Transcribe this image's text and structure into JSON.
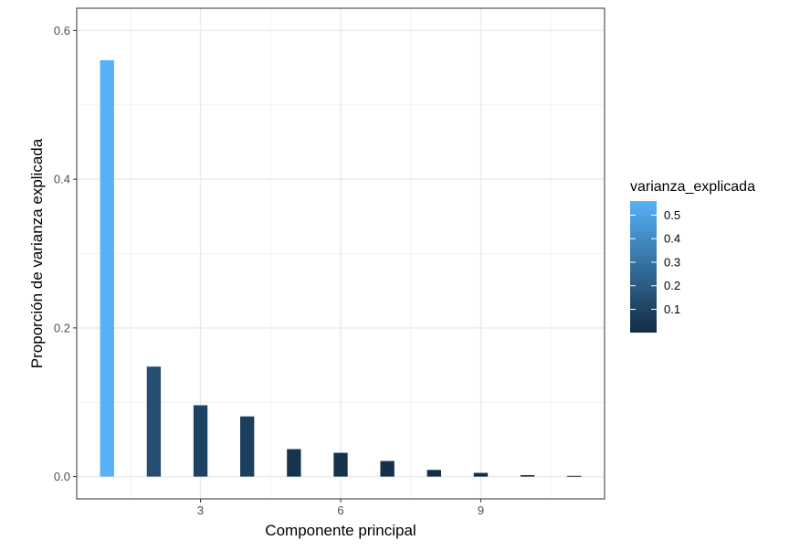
{
  "chart_data": {
    "type": "bar",
    "title": "",
    "xlabel": "Componente principal",
    "ylabel": "Proporción de varianza explicada",
    "x": [
      1,
      2,
      3,
      4,
      5,
      6,
      7,
      8,
      9,
      10,
      11
    ],
    "values": [
      0.56,
      0.148,
      0.096,
      0.081,
      0.037,
      0.032,
      0.021,
      0.009,
      0.005,
      0.002,
      0.001
    ],
    "xlim": [
      0.35,
      11.65
    ],
    "ylim": [
      -0.03,
      0.63
    ],
    "x_ticks": [
      3,
      6,
      9
    ],
    "x_tick_labels": [
      "3",
      "6",
      "9"
    ],
    "y_ticks": [
      0,
      0.2,
      0.4,
      0.6
    ],
    "y_tick_labels": [
      "0.0",
      "0.2",
      "0.4",
      "0.6"
    ],
    "grid": true,
    "legend": {
      "title": "varianza_explicada",
      "placement": "right",
      "ticks": [
        0.1,
        0.2,
        0.3,
        0.4,
        0.5
      ],
      "tick_labels": [
        "0.1",
        "0.2",
        "0.3",
        "0.4",
        "0.5"
      ],
      "range": [
        0.001,
        0.56
      ],
      "color_low": "#132B43",
      "color_high": "#56B1F7"
    }
  }
}
